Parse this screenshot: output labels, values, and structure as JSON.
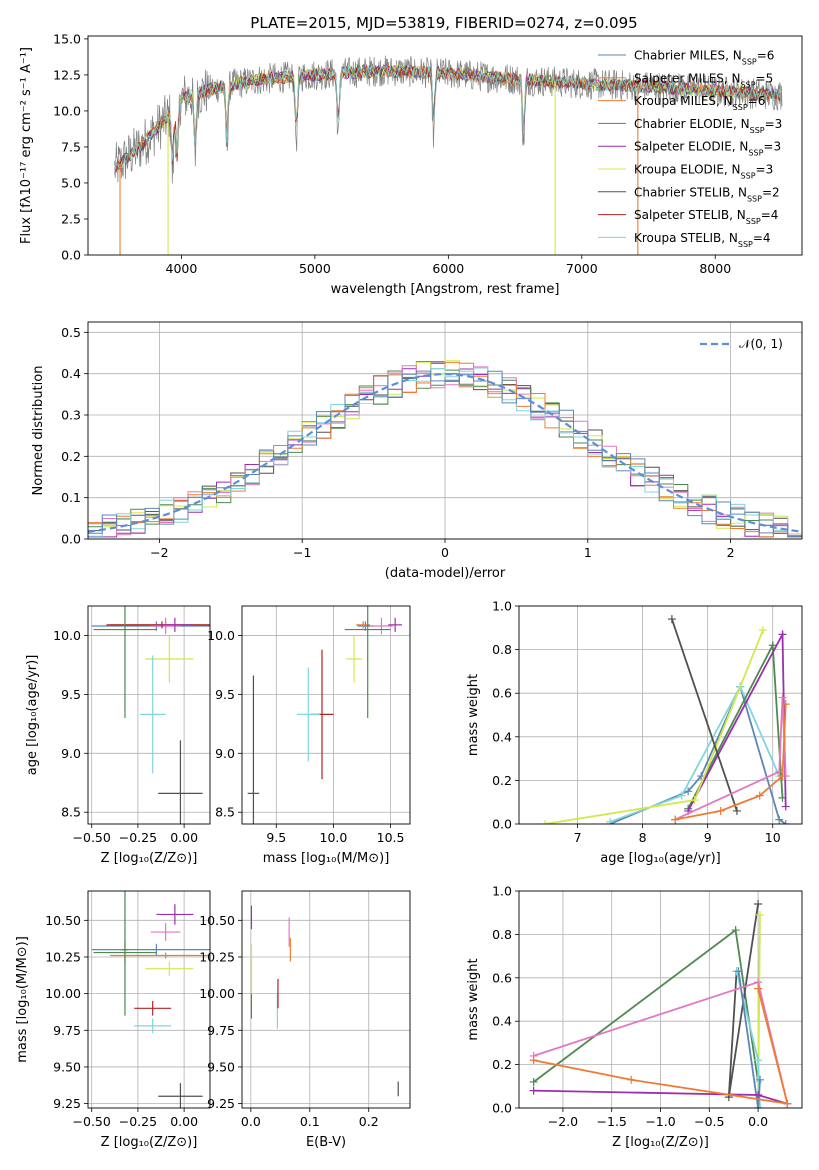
{
  "title": "PLATE=2015, MJD=53819, FIBERID=0274, z=0.095",
  "colors": {
    "chabrier_miles": "#5b86b8",
    "salpeter_miles": "#e08a4a",
    "kroupa_miles": "#ee7b33",
    "chabrier_elodie": "#4e8a50",
    "salpeter_elodie": "#9b2fae",
    "kroupa_elodie": "#d4e84a",
    "chabrier_stelib": "#505050",
    "salpeter_stelib": "#b22222",
    "kroupa_stelib": "#7fd6dc",
    "pink": "#e377c2",
    "grid": "#b0b0b0",
    "data": "#7f7f7f"
  },
  "legend_spectrum": [
    {
      "label": "Chabrier MILES, N",
      "sub": "SSP",
      "eq": "=6",
      "color": "#5b86b8"
    },
    {
      "label": "Salpeter MILES, N",
      "sub": "SSP",
      "eq": "=5",
      "color": "#e08a4a"
    },
    {
      "label": "Kroupa MILES, N",
      "sub": "SSP",
      "eq": "=6",
      "color": "#ee7b33"
    },
    {
      "label": "Chabrier ELODIE, N",
      "sub": "SSP",
      "eq": "=3",
      "color": "#4e8a50"
    },
    {
      "label": "Salpeter ELODIE, N",
      "sub": "SSP",
      "eq": "=3",
      "color": "#9b2fae"
    },
    {
      "label": "Kroupa ELODIE, N",
      "sub": "SSP",
      "eq": "=3",
      "color": "#d4e84a"
    },
    {
      "label": "Chabrier STELIB, N",
      "sub": "SSP",
      "eq": "=2",
      "color": "#505050"
    },
    {
      "label": "Salpeter STELIB, N",
      "sub": "SSP",
      "eq": "=4",
      "color": "#b22222"
    },
    {
      "label": "Kroupa STELIB, N",
      "sub": "SSP",
      "eq": "=4",
      "color": "#7fd6dc"
    }
  ],
  "chart_data": [
    {
      "id": "spectrum",
      "type": "line",
      "xlabel": "wavelength [Angstrom, rest frame]",
      "ylabel": "Flux [fλ10⁻¹⁷ erg cm⁻² s⁻¹ A⁻¹]",
      "xlim": [
        3300,
        8650
      ],
      "ylim": [
        0,
        15.2
      ],
      "xticks": [
        4000,
        5000,
        6000,
        7000,
        8000
      ],
      "yticks": [
        0.0,
        2.5,
        5.0,
        7.5,
        10.0,
        12.5,
        15.0
      ],
      "legend_position": "right",
      "grid": false,
      "data_range": [
        3500,
        8500
      ],
      "model_envelope": [
        {
          "x": 3500,
          "y": 6.0
        },
        {
          "x": 3700,
          "y": 7.6
        },
        {
          "x": 3900,
          "y": 9.6
        },
        {
          "x": 4000,
          "y": 10.9
        },
        {
          "x": 4300,
          "y": 11.7
        },
        {
          "x": 4600,
          "y": 12.2
        },
        {
          "x": 5000,
          "y": 12.5
        },
        {
          "x": 5500,
          "y": 12.8
        },
        {
          "x": 6000,
          "y": 12.6
        },
        {
          "x": 6500,
          "y": 12.2
        },
        {
          "x": 7000,
          "y": 11.9
        },
        {
          "x": 7500,
          "y": 11.7
        },
        {
          "x": 8000,
          "y": 11.4
        },
        {
          "x": 8500,
          "y": 11.1
        }
      ]
    },
    {
      "id": "residuals",
      "type": "line",
      "xlabel": "(data-model)/error",
      "ylabel": "Normed distribution",
      "xlim": [
        -2.5,
        2.5
      ],
      "ylim": [
        0,
        0.525
      ],
      "xticks": [
        -2,
        -1,
        0,
        1,
        2
      ],
      "yticks": [
        0.0,
        0.1,
        0.2,
        0.3,
        0.4,
        0.5
      ],
      "grid": true,
      "legend_position": "upper right",
      "legend": "𝒩(0, 1)",
      "reference": {
        "name": "𝒩(0, 1)",
        "mean": 0,
        "sigma": 1,
        "color": "#5b8fd9"
      }
    },
    {
      "id": "age-vs-Z",
      "type": "scatter",
      "xlabel": "Z [log₁₀(Z/Z⊙)]",
      "ylabel": "age  [log₁₀(age/yr)]",
      "xlim": [
        -0.52,
        0.14
      ],
      "ylim": [
        8.4,
        10.25
      ],
      "xticks": [
        -0.5,
        -0.25,
        0.0
      ],
      "xticklabels": [
        "−0.50",
        "−0.25",
        "0.00"
      ],
      "yticks": [
        8.5,
        9.0,
        9.5,
        10.0
      ],
      "grid": true,
      "points": [
        {
          "x": -0.15,
          "y": 10.08,
          "xerr": 0.35,
          "yerr": 0.04,
          "color": "#5b86b8"
        },
        {
          "x": -0.1,
          "y": 10.09,
          "xerr": 0.3,
          "yerr": 0.03,
          "color": "#ee7b33"
        },
        {
          "x": -0.1,
          "y": 10.08,
          "xerr": 0.08,
          "yerr": 0.07,
          "color": "#e377c2"
        },
        {
          "x": -0.12,
          "y": 10.09,
          "xerr": 0.3,
          "yerr": 0.03,
          "color": "#b22222"
        },
        {
          "x": -0.05,
          "y": 10.09,
          "xerr": 0.1,
          "yerr": 0.06,
          "color": "#9b2fae"
        },
        {
          "x": -0.32,
          "y": 10.05,
          "xerr": 0.17,
          "yerr": 0.75,
          "color": "#4e8a50"
        },
        {
          "x": -0.08,
          "y": 9.8,
          "xerr": 0.13,
          "yerr": 0.2,
          "color": "#d4e84a"
        },
        {
          "x": -0.17,
          "y": 9.33,
          "xerr": 0.07,
          "yerr": 0.5,
          "color": "#7fd6dc"
        },
        {
          "x": -0.02,
          "y": 8.66,
          "xerr": 0.12,
          "yerr": 0.45,
          "color": "#505050"
        }
      ]
    },
    {
      "id": "age-vs-mass",
      "type": "scatter",
      "xlabel": "mass [log₁₀(M/M⊙)]",
      "xlim": [
        9.2,
        10.67
      ],
      "ylim": [
        8.4,
        10.25
      ],
      "xticks": [
        9.5,
        10.0,
        10.5
      ],
      "yticks": [
        8.5,
        9.0,
        9.5,
        10.0
      ],
      "grid": true,
      "points": [
        {
          "x": 10.28,
          "y": 10.08,
          "xerr": 0.07,
          "yerr": 0.04,
          "color": "#5b86b8"
        },
        {
          "x": 10.26,
          "y": 10.09,
          "xerr": 0.06,
          "yerr": 0.03,
          "color": "#ee7b33"
        },
        {
          "x": 10.42,
          "y": 10.08,
          "xerr": 0.1,
          "yerr": 0.07,
          "color": "#e377c2"
        },
        {
          "x": 10.54,
          "y": 10.09,
          "xerr": 0.06,
          "yerr": 0.06,
          "color": "#9b2fae"
        },
        {
          "x": 10.3,
          "y": 10.05,
          "xerr": 0.2,
          "yerr": 0.75,
          "color": "#4e8a50"
        },
        {
          "x": 10.18,
          "y": 9.8,
          "xerr": 0.07,
          "yerr": 0.2,
          "color": "#d4e84a"
        },
        {
          "x": 9.9,
          "y": 9.33,
          "xerr": 0.1,
          "yerr": 0.55,
          "color": "#b22222"
        },
        {
          "x": 9.78,
          "y": 9.33,
          "xerr": 0.1,
          "yerr": 0.4,
          "color": "#7fd6dc"
        },
        {
          "x": 9.3,
          "y": 8.66,
          "xerr": 0.05,
          "yerr": 1.0,
          "color": "#505050"
        }
      ]
    },
    {
      "id": "weight-vs-age",
      "type": "line",
      "xlabel": "age  [log₁₀(age/yr)]",
      "ylabel": "mass weight",
      "xlim": [
        6.1,
        10.45
      ],
      "ylim": [
        0,
        1.0
      ],
      "xticks": [
        7,
        8,
        9,
        10
      ],
      "yticks": [
        0.0,
        0.2,
        0.4,
        0.6,
        0.8,
        1.0
      ],
      "grid": true,
      "series": [
        {
          "color": "#5b86b8",
          "x": [
            7.5,
            8.7,
            8.9,
            9.5,
            10.1,
            10.2
          ],
          "y": [
            0.0,
            0.15,
            0.22,
            0.63,
            0.02,
            0.0
          ]
        },
        {
          "color": "#7fd6dc",
          "x": [
            7.5,
            8.6,
            9.5,
            10.1
          ],
          "y": [
            0.01,
            0.13,
            0.63,
            0.22
          ]
        },
        {
          "color": "#4e8a50",
          "x": [
            8.7,
            10.0,
            10.15
          ],
          "y": [
            0.07,
            0.82,
            0.12
          ]
        },
        {
          "color": "#9b2fae",
          "x": [
            8.7,
            10.15,
            10.2
          ],
          "y": [
            0.06,
            0.87,
            0.08
          ]
        },
        {
          "color": "#d4e84a",
          "x": [
            6.5,
            8.8,
            9.85
          ],
          "y": [
            0.0,
            0.11,
            0.89
          ]
        },
        {
          "color": "#505050",
          "x": [
            8.45,
            9.45
          ],
          "y": [
            0.94,
            0.06
          ]
        },
        {
          "color": "#e377c2",
          "x": [
            8.5,
            10.1,
            10.15,
            10.2
          ],
          "y": [
            0.02,
            0.24,
            0.58,
            0.22
          ]
        },
        {
          "color": "#ee7b33",
          "x": [
            8.5,
            9.2,
            9.8,
            10.15,
            10.2
          ],
          "y": [
            0.02,
            0.06,
            0.13,
            0.22,
            0.55
          ]
        }
      ]
    },
    {
      "id": "mass-vs-Z",
      "type": "scatter",
      "xlabel": "Z [log₁₀(Z/Z⊙)]",
      "ylabel": "mass [log₁₀(M/M⊙)]",
      "xlim": [
        -0.52,
        0.14
      ],
      "ylim": [
        9.22,
        10.7
      ],
      "xticks": [
        -0.5,
        -0.25,
        0.0
      ],
      "xticklabels": [
        "−0.50",
        "−0.25",
        "0.00"
      ],
      "yticks": [
        9.25,
        9.5,
        9.75,
        10.0,
        10.25,
        10.5
      ],
      "grid": true,
      "points": [
        {
          "x": -0.05,
          "y": 10.54,
          "xerr": 0.1,
          "yerr": 0.07,
          "color": "#9b2fae"
        },
        {
          "x": -0.1,
          "y": 10.42,
          "xerr": 0.08,
          "yerr": 0.06,
          "color": "#e377c2"
        },
        {
          "x": -0.15,
          "y": 10.3,
          "xerr": 0.35,
          "yerr": 0.04,
          "color": "#5b86b8"
        },
        {
          "x": -0.32,
          "y": 10.28,
          "xerr": 0.17,
          "yerr": 0.08,
          "color": "#4e8a50"
        },
        {
          "x": -0.1,
          "y": 10.26,
          "xerr": 0.3,
          "yerr": 0.02,
          "color": "#ee7b33"
        },
        {
          "x": -0.32,
          "y": 10.3,
          "xerr": 0.02,
          "yerr": 0.45,
          "color": "#4e8a50"
        },
        {
          "x": -0.08,
          "y": 10.17,
          "xerr": 0.13,
          "yerr": 0.05,
          "color": "#d4e84a"
        },
        {
          "x": -0.17,
          "y": 9.9,
          "xerr": 0.1,
          "yerr": 0.05,
          "color": "#b22222"
        },
        {
          "x": -0.17,
          "y": 9.78,
          "xerr": 0.1,
          "yerr": 0.05,
          "color": "#7fd6dc"
        },
        {
          "x": -0.02,
          "y": 9.3,
          "xerr": 0.12,
          "yerr": 0.09,
          "color": "#505050"
        }
      ]
    },
    {
      "id": "mass-vs-ebv",
      "type": "scatter",
      "xlabel": "E(B-V)",
      "xlim": [
        -0.015,
        0.27
      ],
      "ylim": [
        9.22,
        10.7
      ],
      "xticks": [
        0.0,
        0.1,
        0.2
      ],
      "yticks": [
        9.25,
        9.5,
        9.75,
        10.0,
        10.25,
        10.5
      ],
      "grid": true,
      "points": [
        {
          "x": 0.001,
          "y": 10.52,
          "xerr": 0,
          "yerr": 0.08,
          "color": "#9b2fae"
        },
        {
          "x": 0.001,
          "y": 10.08,
          "xerr": 0,
          "yerr": 0.25,
          "color": "#4e8a50"
        },
        {
          "x": 0.001,
          "y": 10.17,
          "xerr": 0,
          "yerr": 0.17,
          "color": "#d4e84a"
        },
        {
          "x": 0.045,
          "y": 9.88,
          "xerr": 0,
          "yerr": 0.12,
          "color": "#7fd6dc"
        },
        {
          "x": 0.046,
          "y": 10.0,
          "xerr": 0,
          "yerr": 0.1,
          "color": "#b22222"
        },
        {
          "x": 0.065,
          "y": 10.42,
          "xerr": 0,
          "yerr": 0.1,
          "color": "#e377c2"
        },
        {
          "x": 0.067,
          "y": 10.3,
          "xerr": 0,
          "yerr": 0.08,
          "color": "#ee7b33"
        },
        {
          "x": 0.25,
          "y": 9.35,
          "xerr": 0,
          "yerr": 0.05,
          "color": "#505050"
        }
      ]
    },
    {
      "id": "weight-vs-Z",
      "type": "line",
      "xlabel": "Z [log₁₀(Z/Z⊙)]",
      "ylabel": "mass weight",
      "xlim": [
        -2.45,
        0.45
      ],
      "ylim": [
        0,
        1.0
      ],
      "xticks": [
        -2.0,
        -1.5,
        -1.0,
        -0.5,
        0.0
      ],
      "xticklabels": [
        "−2.0",
        "−1.5",
        "−1.0",
        "−0.5",
        "0.0"
      ],
      "yticks": [
        0.0,
        0.2,
        0.4,
        0.6,
        0.8,
        1.0
      ],
      "grid": true,
      "series": [
        {
          "color": "#4e8a50",
          "x": [
            -2.3,
            -0.23,
            0.0
          ],
          "y": [
            0.12,
            0.82,
            0.12
          ]
        },
        {
          "color": "#505050",
          "x": [
            0.0,
            -0.3,
            -0.22
          ],
          "y": [
            0.94,
            0.05,
            0.63
          ]
        },
        {
          "color": "#d4e84a",
          "x": [
            0.0,
            0.02,
            0.0
          ],
          "y": [
            0.0,
            0.89,
            0.12
          ]
        },
        {
          "color": "#7fd6dc",
          "x": [
            -0.22,
            0.0,
            0.02
          ],
          "y": [
            0.63,
            0.22,
            0.0
          ]
        },
        {
          "color": "#5b86b8",
          "x": [
            -0.2,
            0.0,
            0.02
          ],
          "y": [
            0.63,
            0.0,
            0.13
          ]
        },
        {
          "color": "#9b2fae",
          "x": [
            -2.3,
            0.0,
            0.3
          ],
          "y": [
            0.08,
            0.06,
            0.02
          ]
        },
        {
          "color": "#e377c2",
          "x": [
            -2.3,
            0.0,
            0.3
          ],
          "y": [
            0.24,
            0.58,
            0.02
          ]
        },
        {
          "color": "#ee7b33",
          "x": [
            -2.3,
            -1.3,
            0.3,
            0.0
          ],
          "y": [
            0.22,
            0.13,
            0.02,
            0.55
          ]
        }
      ]
    }
  ]
}
